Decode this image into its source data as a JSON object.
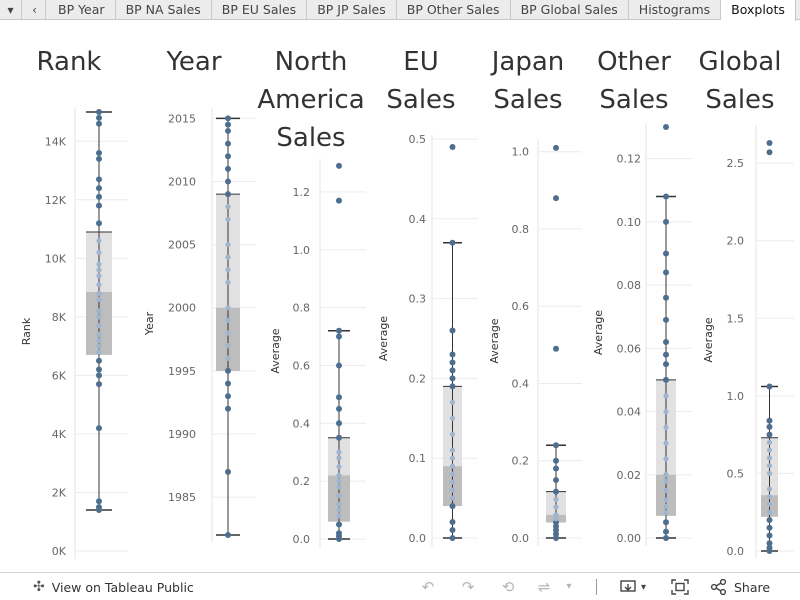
{
  "tabs": [
    "BP Year",
    "BP NA Sales",
    "BP EU Sales",
    "BP JP Sales",
    "BP Other Sales",
    "BP Global Sales",
    "Histograms",
    "Boxplots"
  ],
  "active_tab": "Boxplots",
  "toolbar": {
    "view_on_label": "View on Tableau Public",
    "share_label": "Share"
  },
  "colors": {
    "dot": "#4e6e8e",
    "dot_light": "#9fb4cd",
    "box_upper": "#e1e1e1",
    "box_lower": "#bdbdbd",
    "whisker": "#333333",
    "grid": "#ececec"
  },
  "icons": [
    "tableau-logo-icon",
    "undo-icon",
    "redo-icon",
    "revert-icon",
    "refresh-icon",
    "download-icon",
    "fullscreen-icon",
    "share-icon"
  ],
  "chart_data": [
    {
      "type": "boxplot",
      "title": [
        "Rank"
      ],
      "ylabel": "Rank",
      "ylim": [
        0,
        15000
      ],
      "ticks": [
        0,
        2000,
        4000,
        6000,
        8000,
        10000,
        12000,
        14000
      ],
      "tick_labels": [
        "0K",
        "2K",
        "4K",
        "6K",
        "8K",
        "10K",
        "12K",
        "14K"
      ],
      "whisker_low": 1400,
      "q1": 6700,
      "median": 8850,
      "q3": 10900,
      "whisker_high": 15000,
      "points": [
        1400,
        1700,
        1500,
        4200,
        5700,
        6000,
        6200,
        6500,
        6800,
        7000,
        7200,
        7400,
        7700,
        8000,
        8200,
        8600,
        8800,
        9100,
        9400,
        9600,
        9800,
        10200,
        10600,
        11200,
        11800,
        12100,
        12400,
        12700,
        13400,
        13600,
        14600,
        14800,
        15000
      ]
    },
    {
      "type": "boxplot",
      "title": [
        "Year"
      ],
      "ylabel": "Year",
      "ylim": [
        1982,
        2015.5
      ],
      "ticks": [
        1985,
        1990,
        1995,
        2000,
        2005,
        2010,
        2015
      ],
      "tick_labels": [
        "1985",
        "1990",
        "1995",
        "2000",
        "2005",
        "2010",
        "2015"
      ],
      "whisker_low": 1982,
      "q1": 1995,
      "median": 2000,
      "q3": 2009,
      "whisker_high": 2015,
      "points": [
        1982,
        1987,
        1992,
        1993,
        1994,
        1995,
        1996,
        1997,
        1998,
        1999,
        2000,
        2002,
        2003,
        2004,
        2005,
        2007,
        2008,
        2009,
        2010,
        2011,
        2012,
        2013,
        2014,
        2014.5,
        2015
      ]
    },
    {
      "type": "boxplot",
      "title": [
        "North",
        "America",
        "Sales"
      ],
      "ylabel": "Average",
      "ylim": [
        0,
        1.3
      ],
      "ticks": [
        0,
        0.2,
        0.4,
        0.6,
        0.8,
        1.0,
        1.2
      ],
      "tick_labels": [
        "0.0",
        "0.2",
        "0.4",
        "0.6",
        "0.8",
        "1.0",
        "1.2"
      ],
      "whisker_low": 0.0,
      "q1": 0.06,
      "median": 0.22,
      "q3": 0.35,
      "whisker_high": 0.72,
      "points": [
        0.0,
        0.01,
        0.02,
        0.05,
        0.08,
        0.1,
        0.12,
        0.15,
        0.18,
        0.2,
        0.22,
        0.25,
        0.28,
        0.3,
        0.35,
        0.4,
        0.45,
        0.49,
        0.6,
        0.7,
        0.72,
        1.17,
        1.29
      ]
    },
    {
      "type": "boxplot",
      "title": [
        "EU",
        "Sales"
      ],
      "ylabel": "Average",
      "ylim": [
        0,
        0.5
      ],
      "ticks": [
        0,
        0.1,
        0.2,
        0.3,
        0.4,
        0.5
      ],
      "tick_labels": [
        "0.0",
        "0.1",
        "0.2",
        "0.3",
        "0.4",
        "0.5"
      ],
      "whisker_low": 0.0,
      "q1": 0.04,
      "median": 0.09,
      "q3": 0.19,
      "whisker_high": 0.37,
      "points": [
        0.0,
        0.01,
        0.02,
        0.04,
        0.05,
        0.06,
        0.07,
        0.08,
        0.09,
        0.1,
        0.11,
        0.13,
        0.15,
        0.17,
        0.19,
        0.2,
        0.21,
        0.22,
        0.23,
        0.26,
        0.37,
        0.49
      ]
    },
    {
      "type": "boxplot",
      "title": [
        "Japan",
        "Sales"
      ],
      "ylabel": "Average",
      "ylim": [
        0,
        1.02
      ],
      "ticks": [
        0,
        0.2,
        0.4,
        0.6,
        0.8,
        1.0
      ],
      "tick_labels": [
        "0.0",
        "0.2",
        "0.4",
        "0.6",
        "0.8",
        "1.0"
      ],
      "whisker_low": 0.0,
      "q1": 0.04,
      "median": 0.06,
      "q3": 0.12,
      "whisker_high": 0.24,
      "points": [
        0.0,
        0.01,
        0.02,
        0.03,
        0.04,
        0.05,
        0.06,
        0.08,
        0.1,
        0.12,
        0.15,
        0.18,
        0.2,
        0.24,
        0.49,
        0.88,
        1.01
      ]
    },
    {
      "type": "boxplot",
      "title": [
        "Other",
        "Sales"
      ],
      "ylabel": "Average",
      "ylim": [
        0,
        0.13
      ],
      "ticks": [
        0,
        0.02,
        0.04,
        0.06,
        0.08,
        0.1,
        0.12
      ],
      "tick_labels": [
        "0.00",
        "0.02",
        "0.04",
        "0.06",
        "0.08",
        "0.10",
        "0.12"
      ],
      "whisker_low": 0.0,
      "q1": 0.007,
      "median": 0.02,
      "q3": 0.05,
      "whisker_high": 0.108,
      "points": [
        0.0,
        0.002,
        0.005,
        0.008,
        0.01,
        0.012,
        0.015,
        0.018,
        0.02,
        0.025,
        0.03,
        0.035,
        0.04,
        0.045,
        0.05,
        0.055,
        0.058,
        0.062,
        0.069,
        0.076,
        0.084,
        0.09,
        0.1,
        0.108,
        0.13
      ]
    },
    {
      "type": "boxplot",
      "title": [
        "Global",
        "Sales"
      ],
      "ylabel": "Average",
      "ylim": [
        0,
        2.72
      ],
      "ticks": [
        0,
        0.5,
        1.0,
        1.5,
        2.0,
        2.5
      ],
      "tick_labels": [
        "0.0",
        "0.5",
        "1.0",
        "1.5",
        "2.0",
        "2.5"
      ],
      "whisker_low": 0.0,
      "q1": 0.22,
      "median": 0.36,
      "q3": 0.73,
      "whisker_high": 1.06,
      "points": [
        0.0,
        0.02,
        0.05,
        0.1,
        0.15,
        0.2,
        0.25,
        0.3,
        0.35,
        0.4,
        0.5,
        0.55,
        0.6,
        0.65,
        0.7,
        0.75,
        0.8,
        0.84,
        1.06,
        2.57,
        2.63
      ]
    }
  ]
}
